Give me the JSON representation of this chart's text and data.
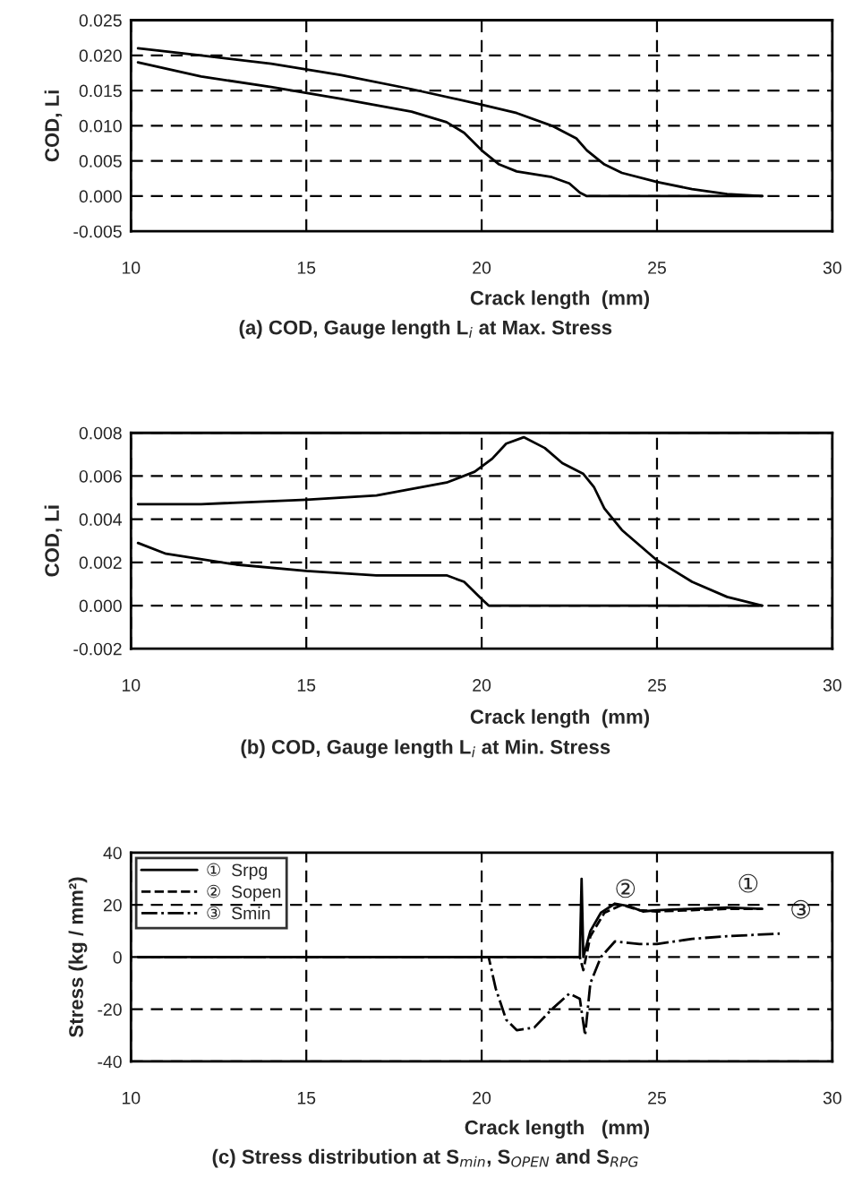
{
  "chart_data": [
    {
      "type": "line",
      "title": "(a) COD, Gauge length L$_{i}$ at Max. Stress",
      "xlabel": "Crack length  (mm)",
      "ylabel": "COD, Li",
      "xlim": [
        10,
        30
      ],
      "xticks": [
        10,
        15,
        20,
        25,
        30
      ],
      "ylim": [
        -0.005,
        0.025
      ],
      "yticks": [
        -0.005,
        {
          "value": 0,
          "label": "0.000"
        },
        {
          "value": 0.005,
          "label": "0.005"
        },
        {
          "value": 0.01,
          "label": "0.010"
        },
        {
          "value": 0.015,
          "label": "0.015"
        },
        {
          "value": 0.02,
          "label": "0.020"
        },
        0.025
      ],
      "grid": true,
      "legend": false,
      "series": [
        {
          "color": "#000000",
          "x": [
            10.2,
            12,
            14,
            16,
            18,
            20,
            21,
            22,
            22.7,
            23,
            23.5,
            24,
            25,
            26,
            27,
            28
          ],
          "values": [
            0.021,
            0.02,
            0.0188,
            0.0172,
            0.0152,
            0.013,
            0.0118,
            0.01,
            0.0082,
            0.0065,
            0.0045,
            0.0033,
            0.002,
            0.001,
            0.0003,
            0.0
          ]
        },
        {
          "color": "#000000",
          "x": [
            10.2,
            12,
            14,
            16,
            18,
            19,
            19.5,
            20,
            20.5,
            21,
            22,
            22.5,
            22.8,
            23,
            28
          ],
          "values": [
            0.019,
            0.017,
            0.0155,
            0.0138,
            0.012,
            0.0105,
            0.009,
            0.0065,
            0.0045,
            0.0035,
            0.0027,
            0.0018,
            0.0005,
            0.0,
            0.0
          ]
        }
      ]
    },
    {
      "type": "line",
      "title": "(b) COD, Gauge length L$_{i}$ at Min. Stress",
      "xlabel": "Crack length  (mm)",
      "ylabel": "COD, Li",
      "xlim": [
        10,
        30
      ],
      "xticks": [
        10,
        15,
        20,
        25,
        30
      ],
      "ylim": [
        -0.002,
        0.008
      ],
      "yticks": [
        -0.002,
        {
          "value": 0,
          "label": "0.000"
        },
        0.002,
        0.004,
        0.006,
        0.008
      ],
      "grid": true,
      "legend": false,
      "series": [
        {
          "color": "#000000",
          "x": [
            10.2,
            12,
            15,
            17,
            18,
            19,
            19.8,
            20.3,
            20.7,
            21.2,
            21.8,
            22.3,
            22.9,
            23.2,
            23.5,
            24,
            25,
            26,
            27,
            28
          ],
          "values": [
            0.0047,
            0.0047,
            0.0049,
            0.0051,
            0.0054,
            0.0057,
            0.0062,
            0.0068,
            0.0075,
            0.0078,
            0.0073,
            0.0066,
            0.0061,
            0.0055,
            0.0045,
            0.0035,
            0.0021,
            0.0011,
            0.0004,
            0.0
          ]
        },
        {
          "color": "#000000",
          "x": [
            10.2,
            11,
            13,
            15,
            17,
            19,
            19.5,
            20,
            20.2,
            28
          ],
          "values": [
            0.0029,
            0.0024,
            0.0019,
            0.0016,
            0.0014,
            0.0014,
            0.0011,
            0.0003,
            0.0,
            0.0
          ]
        }
      ]
    },
    {
      "type": "line",
      "title": "(c) Stress distribution at S$_{min}$, S$_{OPEN}$ and S$_{RPG}$",
      "xlabel": "Crack length   (mm)",
      "ylabel": "Stress (kg / mm²)",
      "xlim": [
        10,
        30
      ],
      "xticks": [
        10,
        15,
        20,
        25,
        30
      ],
      "ylim": [
        -40,
        40
      ],
      "yticks": [
        -40,
        -20,
        0,
        20,
        40
      ],
      "grid": true,
      "legend": "top left",
      "annotations": [
        {
          "text": "①",
          "x": 27,
          "y": 19
        },
        {
          "text": "②",
          "x": 23.5,
          "y": 17
        },
        {
          "text": "③",
          "x": 28.5,
          "y": 9
        }
      ],
      "series": [
        {
          "name": "①  Srpg",
          "color": "#000000",
          "line_style": "solid",
          "x": [
            10.2,
            22.8,
            22.85,
            22.9,
            23.1,
            23.4,
            23.8,
            24.2,
            24.6,
            25,
            26,
            27,
            28
          ],
          "values": [
            0,
            0,
            30,
            0,
            10,
            17,
            20.5,
            19.5,
            17.5,
            18,
            18.5,
            19,
            18.5
          ]
        },
        {
          "name": "②  Sopen",
          "color": "#000000",
          "line_style": "dashed",
          "x": [
            10.2,
            22.8,
            22.9,
            23.1,
            23.5,
            24,
            24.5,
            25,
            26,
            27,
            28
          ],
          "values": [
            0,
            0,
            -5,
            8,
            17,
            20,
            18,
            17.5,
            18,
            18.5,
            18.5
          ]
        },
        {
          "name": "③  Smin",
          "color": "#000000",
          "line_style": "dashdot",
          "x": [
            10.2,
            20.2,
            20.4,
            20.7,
            21,
            21.5,
            22,
            22.5,
            22.8,
            22.95,
            23.1,
            23.4,
            23.8,
            24.5,
            25,
            26,
            27,
            28.5
          ],
          "values": [
            0,
            0,
            -12,
            -24,
            -28,
            -27,
            -20,
            -14,
            -16,
            -30,
            -10,
            0,
            6,
            5,
            5,
            7,
            8,
            9
          ]
        }
      ]
    }
  ]
}
